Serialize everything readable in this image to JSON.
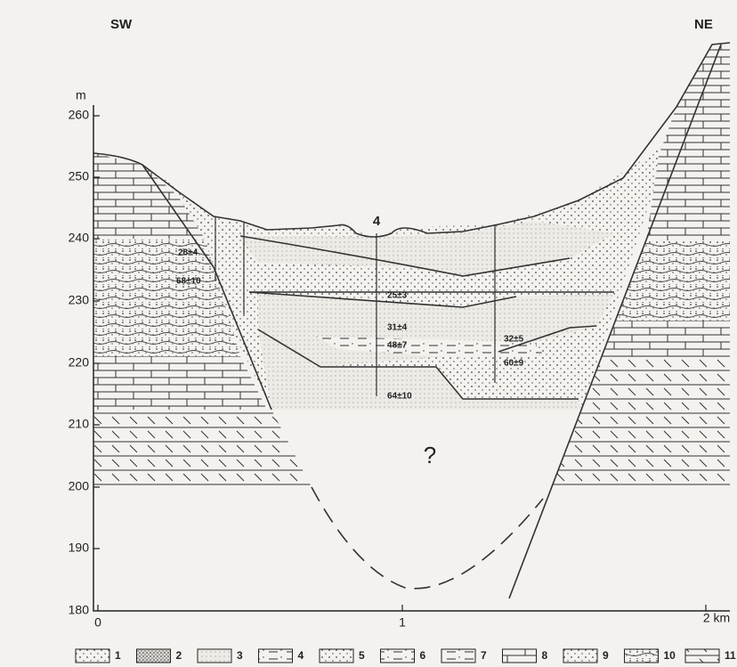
{
  "header": {
    "left": "SW",
    "right": "NE"
  },
  "axis": {
    "unit": "m",
    "elevations": [
      "260",
      "250",
      "240",
      "230",
      "220",
      "210",
      "200",
      "190",
      "180"
    ],
    "distances": [
      "0",
      "1",
      "2 km"
    ]
  },
  "labels": {
    "borehole": "4",
    "unknown": "?",
    "ages": [
      "28±4",
      "68±10",
      "25±3",
      "31±4",
      "48±7",
      "32±5",
      "60±9",
      "64±10"
    ]
  },
  "legend": [
    "1",
    "2",
    "3",
    "4",
    "5",
    "6",
    "7",
    "8",
    "9",
    "10",
    "11"
  ]
}
